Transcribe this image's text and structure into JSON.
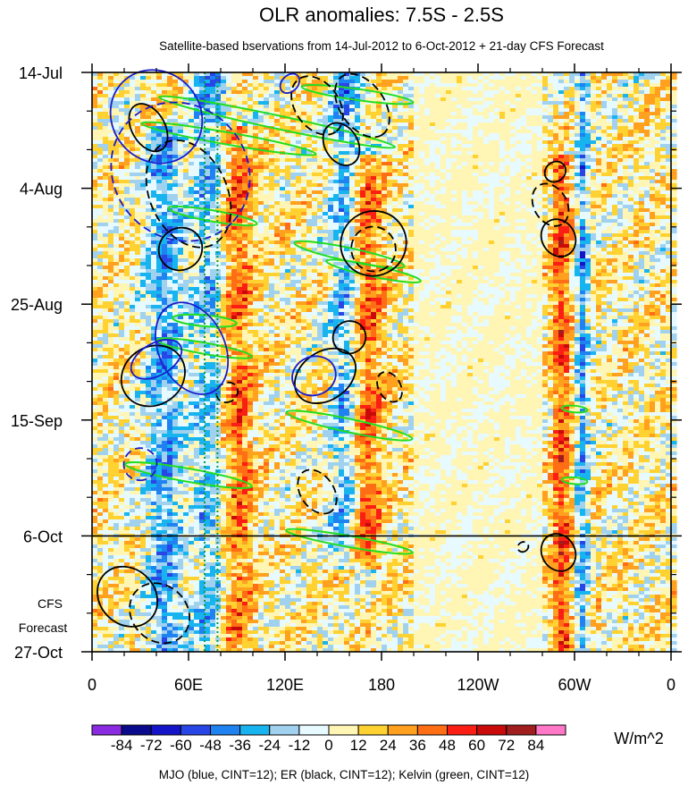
{
  "chart_data": {
    "type": "heatmap",
    "title": "OLR anomalies: 7.5S - 2.5S",
    "subtitle": "Satellite-based bservations from 14-Jul-2012 to 6-Oct-2012 + 21-day CFS Forecast",
    "x_axis": {
      "label": "",
      "tick_labels": [
        "0",
        "60E",
        "120E",
        "180",
        "120W",
        "60W",
        "0"
      ],
      "tick_values_deg_east": [
        0,
        60,
        120,
        180,
        240,
        300,
        360
      ],
      "range_deg_east": [
        0,
        360
      ]
    },
    "y_axis": {
      "label": "",
      "tick_labels": [
        "14-Jul",
        "4-Aug",
        "25-Aug",
        "15-Sep",
        "6-Oct",
        "27-Oct"
      ],
      "tick_values_days": [
        0,
        21,
        42,
        63,
        84,
        105
      ],
      "range_days": [
        0,
        105
      ],
      "direction": "time increases downward"
    },
    "forecast_label_lines": [
      "CFS",
      "Forecast"
    ],
    "forecast_start_day": 84,
    "colorbar": {
      "levels": [
        -84,
        -72,
        -60,
        -48,
        -36,
        -24,
        -12,
        0,
        12,
        24,
        36,
        48,
        60,
        72,
        84
      ],
      "level_labels": [
        "-84",
        "-72",
        "-60",
        "-48",
        "-36",
        "-24",
        "-12",
        "0",
        "12",
        "24",
        "36",
        "48",
        "60",
        "72",
        "84"
      ],
      "colors": [
        "#8a2be2",
        "#0a0a8c",
        "#1414c8",
        "#2846e6",
        "#1e82f0",
        "#18b4f0",
        "#a0d2f0",
        "#e6faff",
        "#fff5b4",
        "#ffd232",
        "#ffa01e",
        "#ff6e14",
        "#fa1e14",
        "#c80a0a",
        "#a01e1e",
        "#ff78c8"
      ],
      "units": "W/m^2"
    },
    "footer": "MJO (blue, CINT=12); ER (black, CINT=12); Kelvin (green, CINT=12)",
    "reference_lines_deg_east": [
      70,
      78
    ],
    "enhanced_convection_bands_deg_east": [
      {
        "center": 45,
        "width": 22,
        "day_start": 10,
        "day_end": 105
      },
      {
        "center": 75,
        "width": 24,
        "day_start": 0,
        "day_end": 105
      },
      {
        "center": 158,
        "width": 20,
        "day_start": 0,
        "day_end": 90
      },
      {
        "center": 305,
        "width": 8,
        "day_start": 0,
        "day_end": 105
      }
    ],
    "suppressed_convection_bands_deg_east": [
      {
        "center": 88,
        "width": 24,
        "day_start": 10,
        "day_end": 105
      },
      {
        "center": 170,
        "width": 22,
        "day_start": 15,
        "day_end": 90
      },
      {
        "center": 292,
        "width": 12,
        "day_start": 15,
        "day_end": 105
      }
    ],
    "mjo_contours_blue": [
      {
        "lon": 40,
        "day": 8,
        "rx": 30,
        "ry": 8,
        "angle_deg": 50,
        "style": "solid"
      },
      {
        "lon": 55,
        "day": 18,
        "rx": 45,
        "ry": 12,
        "angle_deg": 45,
        "style": "dashed"
      },
      {
        "lon": 62,
        "day": 50,
        "rx": 30,
        "ry": 6,
        "angle_deg": 65,
        "style": "solid"
      },
      {
        "lon": 40,
        "day": 52,
        "rx": 10,
        "ry": 5,
        "angle_deg": 60,
        "style": "solid"
      },
      {
        "lon": 138,
        "day": 55,
        "rx": 12,
        "ry": 4,
        "angle_deg": 70,
        "style": "solid"
      },
      {
        "lon": 30,
        "day": 71,
        "rx": 10,
        "ry": 3,
        "angle_deg": 75,
        "style": "dashed"
      },
      {
        "lon": 123,
        "day": 2,
        "rx": 5,
        "ry": 2,
        "angle_deg": 45,
        "style": "solid"
      }
    ],
    "er_contours_black": [
      {
        "lon": 35,
        "day": 10,
        "rx": 16,
        "ry": 3,
        "angle_deg": 60,
        "style": "solid"
      },
      {
        "lon": 60,
        "day": 22,
        "rx": 35,
        "ry": 7,
        "angle_deg": 65,
        "style": "dashed"
      },
      {
        "lon": 140,
        "day": 6,
        "rx": 20,
        "ry": 4,
        "angle_deg": 55,
        "style": "dashed"
      },
      {
        "lon": 168,
        "day": 6,
        "rx": 22,
        "ry": 4,
        "angle_deg": 55,
        "style": "dashed"
      },
      {
        "lon": 175,
        "day": 31,
        "rx": 20,
        "ry": 6,
        "angle_deg": 55,
        "style": "solid"
      },
      {
        "lon": 175,
        "day": 32,
        "rx": 14,
        "ry": 4,
        "angle_deg": 55,
        "style": "dashed"
      },
      {
        "lon": 55,
        "day": 32,
        "rx": 13,
        "ry": 4,
        "angle_deg": 55,
        "style": "solid"
      },
      {
        "lon": 38,
        "day": 55,
        "rx": 18,
        "ry": 6,
        "angle_deg": 55,
        "style": "solid"
      },
      {
        "lon": 145,
        "day": 55,
        "rx": 15,
        "ry": 6,
        "angle_deg": 55,
        "style": "solid"
      },
      {
        "lon": 160,
        "day": 48,
        "rx": 10,
        "ry": 3,
        "angle_deg": 55,
        "style": "solid"
      },
      {
        "lon": 185,
        "day": 57,
        "rx": 10,
        "ry": 2,
        "angle_deg": 60,
        "style": "dashed"
      },
      {
        "lon": 140,
        "day": 76,
        "rx": 15,
        "ry": 3,
        "angle_deg": 55,
        "style": "dashed"
      },
      {
        "lon": 285,
        "day": 24,
        "rx": 14,
        "ry": 3,
        "angle_deg": 60,
        "style": "dashed"
      },
      {
        "lon": 290,
        "day": 30,
        "rx": 12,
        "ry": 3,
        "angle_deg": 60,
        "style": "solid"
      },
      {
        "lon": 288,
        "day": 18,
        "rx": 6,
        "ry": 2,
        "angle_deg": 50,
        "style": "solid"
      },
      {
        "lon": 290,
        "day": 87,
        "rx": 12,
        "ry": 3,
        "angle_deg": 60,
        "style": "solid"
      },
      {
        "lon": 268,
        "day": 86,
        "rx": 3,
        "ry": 1,
        "angle_deg": 60,
        "style": "dashed"
      },
      {
        "lon": 22,
        "day": 95,
        "rx": 20,
        "ry": 5,
        "angle_deg": 45,
        "style": "solid"
      },
      {
        "lon": 42,
        "day": 98,
        "rx": 20,
        "ry": 5,
        "angle_deg": 45,
        "style": "dashed"
      },
      {
        "lon": 84,
        "day": 58,
        "rx": 6,
        "ry": 2,
        "angle_deg": 60,
        "style": "dashed"
      },
      {
        "lon": 155,
        "day": 13,
        "rx": 14,
        "ry": 3,
        "angle_deg": 60,
        "style": "solid"
      }
    ],
    "kelvin_contours_green": [
      {
        "lon": 115,
        "day": 9,
        "rx": 75,
        "ry": 1.2,
        "angle_deg": 12,
        "style": "solid"
      },
      {
        "lon": 85,
        "day": 12,
        "rx": 55,
        "ry": 1.1,
        "angle_deg": 10,
        "style": "solid"
      },
      {
        "lon": 165,
        "day": 4,
        "rx": 35,
        "ry": 1,
        "angle_deg": 8,
        "style": "solid"
      },
      {
        "lon": 75,
        "day": 26,
        "rx": 28,
        "ry": 1,
        "angle_deg": 10,
        "style": "solid"
      },
      {
        "lon": 160,
        "day": 33,
        "rx": 35,
        "ry": 1.2,
        "angle_deg": 12,
        "style": "solid"
      },
      {
        "lon": 175,
        "day": 36,
        "rx": 30,
        "ry": 1,
        "angle_deg": 12,
        "style": "solid"
      },
      {
        "lon": 70,
        "day": 50,
        "rx": 30,
        "ry": 1,
        "angle_deg": 10,
        "style": "solid"
      },
      {
        "lon": 70,
        "day": 45,
        "rx": 20,
        "ry": 1,
        "angle_deg": 5,
        "style": "solid"
      },
      {
        "lon": 160,
        "day": 64,
        "rx": 40,
        "ry": 1.2,
        "angle_deg": 12,
        "style": "solid"
      },
      {
        "lon": 60,
        "day": 73,
        "rx": 40,
        "ry": 1.2,
        "angle_deg": 10,
        "style": "solid"
      },
      {
        "lon": 160,
        "day": 85,
        "rx": 40,
        "ry": 1,
        "angle_deg": 10,
        "style": "solid"
      },
      {
        "lon": 300,
        "day": 61,
        "rx": 8,
        "ry": 0.6,
        "angle_deg": 5,
        "style": "solid"
      },
      {
        "lon": 300,
        "day": 74,
        "rx": 8,
        "ry": 0.6,
        "angle_deg": 5,
        "style": "solid"
      }
    ]
  }
}
